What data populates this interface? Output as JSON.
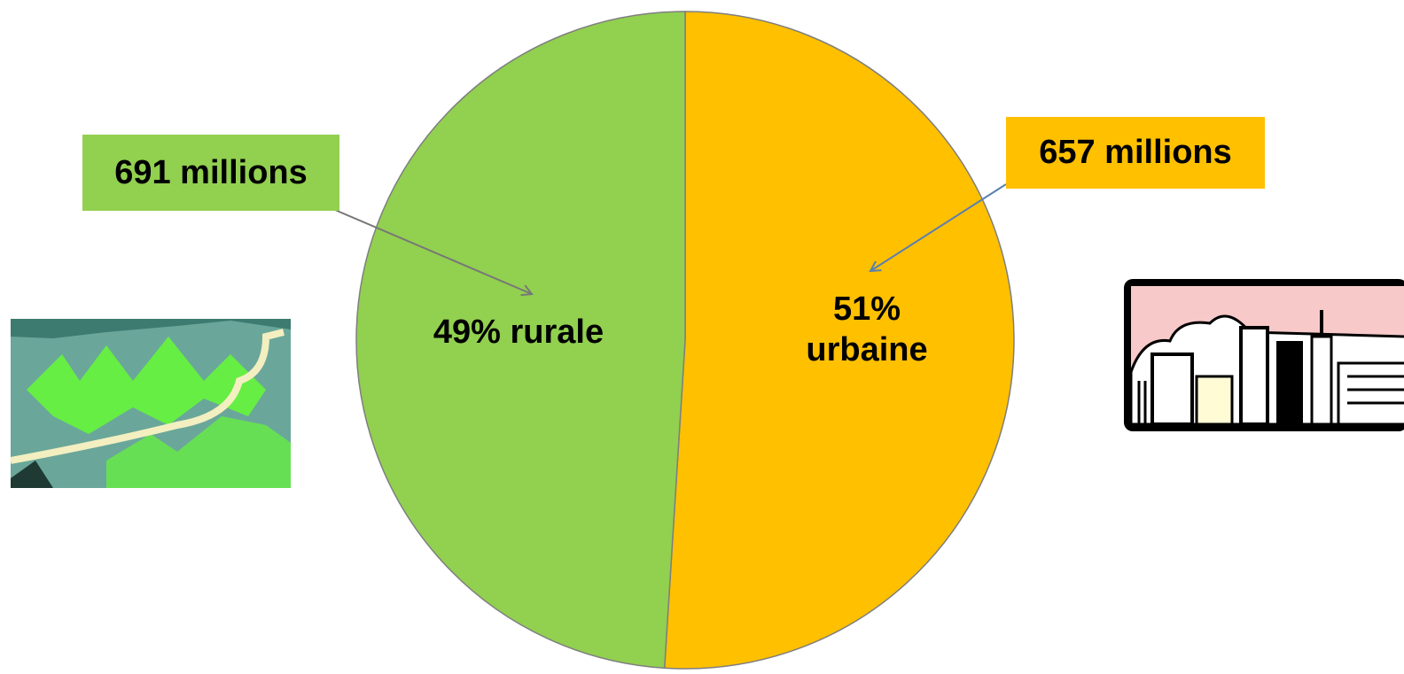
{
  "chart_data": {
    "type": "pie",
    "categories": [
      "urbaine",
      "rurale"
    ],
    "values": [
      51,
      49
    ],
    "value_labels": [
      "51% urbaine",
      "49% rurale"
    ],
    "colors": [
      "#ffc000",
      "#92d050"
    ],
    "annotations": [
      "657 millions",
      "691 millions"
    ]
  }
}
